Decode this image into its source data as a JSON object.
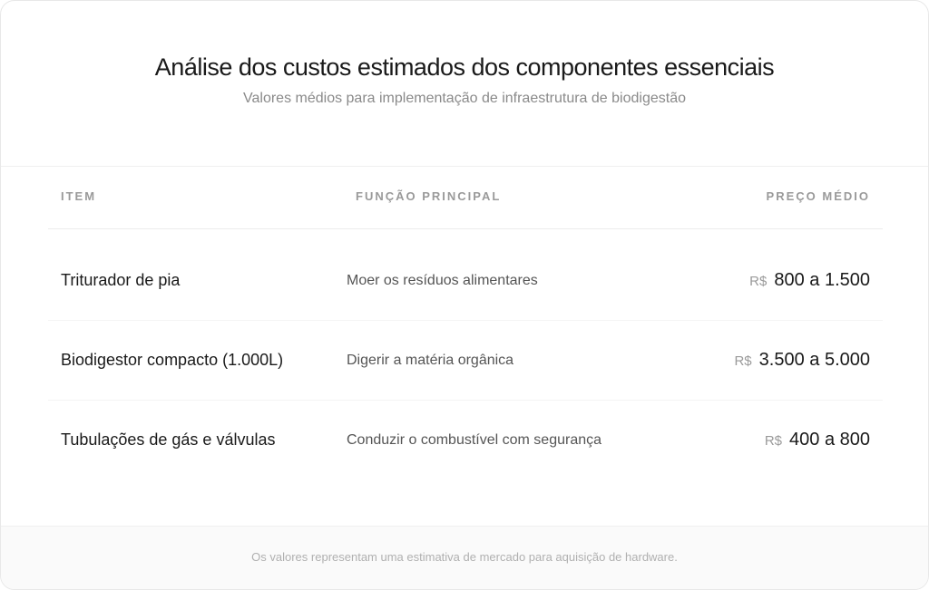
{
  "header": {
    "title": "Análise dos custos estimados dos componentes essenciais",
    "subtitle": "Valores médios para implementação de infraestrutura de biodigestão"
  },
  "table": {
    "columns": [
      "ITEM",
      "FUNÇÃO PRINCIPAL",
      "PREÇO MÉDIO"
    ],
    "rows": [
      {
        "item": "Triturador de pia",
        "function": "Moer os resíduos alimentares",
        "currency": "R$",
        "price": "800 a 1.500"
      },
      {
        "item": "Biodigestor compacto (1.000L)",
        "function": "Digerir a matéria orgânica",
        "currency": "R$",
        "price": "3.500 a 5.000"
      },
      {
        "item": "Tubulações de gás e válvulas",
        "function": "Conduzir o combustível com segurança",
        "currency": "R$",
        "price": "400 a 800"
      }
    ]
  },
  "footer": {
    "note": "Os valores representam uma estimativa de mercado para aquisição de hardware."
  }
}
